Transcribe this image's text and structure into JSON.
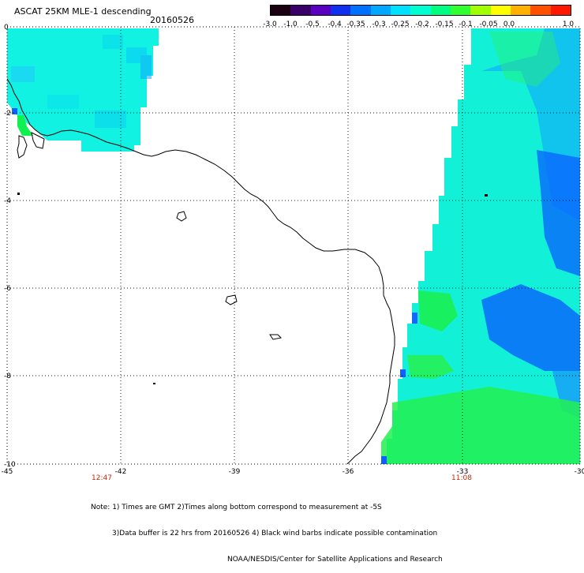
{
  "header": {
    "title": "ASCAT 25KM MLE-1 descending",
    "date": "20160526"
  },
  "colorbar": {
    "labels": [
      "-3.0",
      "-1.0",
      "-0.5",
      "-0.4",
      "-0.35",
      "-0.3",
      "-0.25",
      "-0.2",
      "-0.15",
      "-0.1",
      "-0.05",
      "0.0",
      "1.0"
    ],
    "colors": [
      "#1a0010",
      "#3a006a",
      "#5a00c0",
      "#1030f0",
      "#0070ff",
      "#00a8ff",
      "#00e0ff",
      "#00ffd0",
      "#00ff80",
      "#30ff30",
      "#a0ff00",
      "#ffff00",
      "#ffb000",
      "#ff5000",
      "#ff1800"
    ]
  },
  "map": {
    "lon_labels": [
      "-45",
      "-42",
      "-39",
      "-36",
      "-33",
      "-30"
    ],
    "lat_labels": [
      "0",
      "-2",
      "-4",
      "-6",
      "-8",
      "-10"
    ],
    "pass_times": {
      "west": "12:47",
      "east": "11:08"
    }
  },
  "notes": {
    "line1": "Note: 1) Times are GMT 2)Times along bottom correspond to measurement at -5S",
    "line2": "3)Data buffer is 22 hrs from 20160526 4) Black wind barbs indicate possible contamination",
    "line3": "NOAA/NESDIS/Center for Satellite Applications and Research"
  },
  "legend_colors": {
    "cyan": "#00f0e0",
    "blue": "#0050ff",
    "green": "#10f060"
  }
}
